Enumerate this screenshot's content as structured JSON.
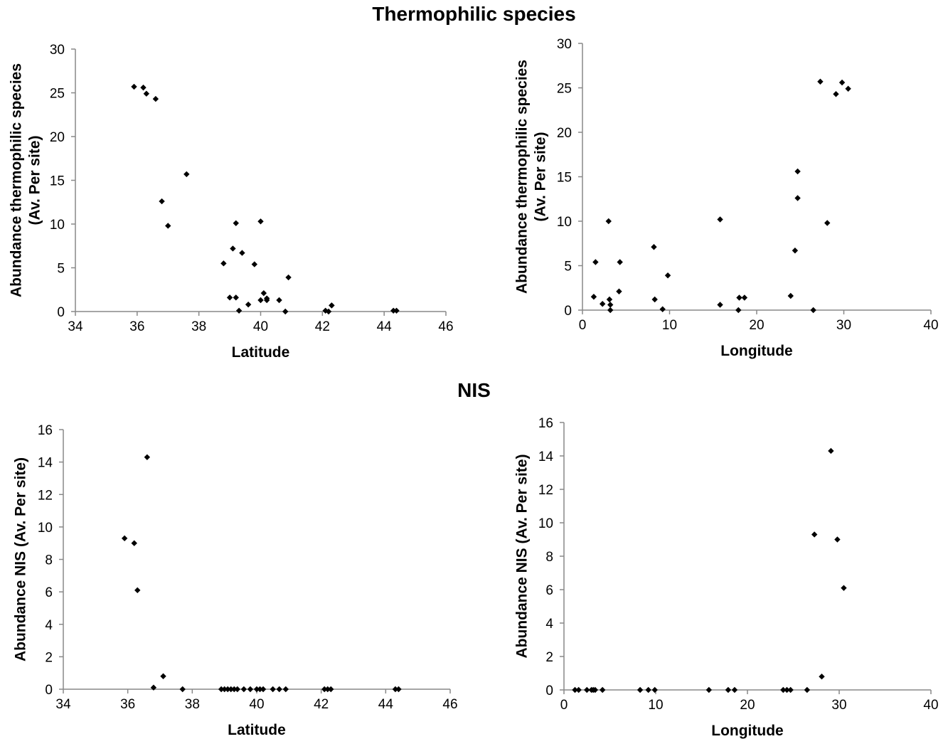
{
  "titles": {
    "top": "Thermophilic species",
    "bottom": "NIS"
  },
  "chart_data": [
    {
      "type": "scatter",
      "id": "thermo-lat",
      "xlabel": "Latitude",
      "ylabel": [
        "Abundance thermophilic species",
        "(Av. Per site)"
      ],
      "xlim": [
        34,
        46
      ],
      "xticks": [
        34,
        36,
        38,
        40,
        42,
        44,
        46
      ],
      "ylim": [
        0,
        30
      ],
      "yticks": [
        0,
        5,
        10,
        15,
        20,
        25,
        30
      ],
      "grid": false,
      "legend": "none",
      "points": [
        [
          35.9,
          25.7
        ],
        [
          36.2,
          25.6
        ],
        [
          36.3,
          24.9
        ],
        [
          36.6,
          24.3
        ],
        [
          36.8,
          12.6
        ],
        [
          37.0,
          9.8
        ],
        [
          37.6,
          15.7
        ],
        [
          38.8,
          5.5
        ],
        [
          39.0,
          1.6
        ],
        [
          39.1,
          7.2
        ],
        [
          39.2,
          1.6
        ],
        [
          39.2,
          10.1
        ],
        [
          39.3,
          0.1
        ],
        [
          39.4,
          6.7
        ],
        [
          39.6,
          0.8
        ],
        [
          39.8,
          5.4
        ],
        [
          40.0,
          10.3
        ],
        [
          40.0,
          1.3
        ],
        [
          40.1,
          2.1
        ],
        [
          40.2,
          1.3
        ],
        [
          40.2,
          1.5
        ],
        [
          40.6,
          1.3
        ],
        [
          40.8,
          0.0
        ],
        [
          40.9,
          3.9
        ],
        [
          42.1,
          0.1
        ],
        [
          42.2,
          0.0
        ],
        [
          42.3,
          0.7
        ],
        [
          42.3,
          0.7
        ],
        [
          44.3,
          0.1
        ],
        [
          44.4,
          0.1
        ]
      ]
    },
    {
      "type": "scatter",
      "id": "thermo-lon",
      "xlabel": "Longitude",
      "ylabel": [
        "Abundance thermophilic species",
        "(Av. Per site)"
      ],
      "xlim": [
        0,
        40
      ],
      "xticks": [
        0,
        10,
        20,
        30,
        40
      ],
      "ylim": [
        0,
        30
      ],
      "yticks": [
        0,
        5,
        10,
        15,
        20,
        25,
        30
      ],
      "grid": false,
      "legend": "none",
      "points": [
        [
          1.3,
          1.5
        ],
        [
          1.5,
          5.4
        ],
        [
          2.3,
          0.7
        ],
        [
          3.0,
          10.0
        ],
        [
          3.1,
          1.2
        ],
        [
          3.2,
          0.6
        ],
        [
          3.2,
          0.0
        ],
        [
          4.2,
          2.1
        ],
        [
          4.3,
          5.4
        ],
        [
          8.2,
          7.1
        ],
        [
          8.3,
          1.2
        ],
        [
          9.2,
          0.1
        ],
        [
          9.8,
          3.9
        ],
        [
          15.8,
          10.2
        ],
        [
          15.8,
          0.6
        ],
        [
          17.9,
          0.0
        ],
        [
          18.0,
          1.4
        ],
        [
          18.6,
          1.4
        ],
        [
          23.9,
          1.6
        ],
        [
          24.4,
          6.7
        ],
        [
          24.7,
          12.6
        ],
        [
          24.7,
          15.6
        ],
        [
          26.5,
          0.0
        ],
        [
          27.3,
          25.7
        ],
        [
          28.1,
          9.8
        ],
        [
          29.1,
          24.3
        ],
        [
          29.8,
          25.6
        ],
        [
          30.5,
          24.9
        ]
      ]
    },
    {
      "type": "scatter",
      "id": "nis-lat",
      "xlabel": "Latitude",
      "ylabel": [
        "Abundance NIS  (Av. Per site)"
      ],
      "xlim": [
        34,
        46
      ],
      "xticks": [
        34,
        36,
        38,
        40,
        42,
        44,
        46
      ],
      "ylim": [
        0,
        16
      ],
      "yticks": [
        0,
        2,
        4,
        6,
        8,
        10,
        12,
        14,
        16
      ],
      "grid": false,
      "legend": "none",
      "points": [
        [
          35.9,
          9.3
        ],
        [
          36.2,
          9.0
        ],
        [
          36.3,
          6.1
        ],
        [
          36.6,
          14.3
        ],
        [
          36.8,
          0.1
        ],
        [
          37.1,
          0.8
        ],
        [
          37.7,
          0.0
        ],
        [
          38.9,
          0.0
        ],
        [
          39.0,
          0.0
        ],
        [
          39.1,
          0.0
        ],
        [
          39.2,
          0.0
        ],
        [
          39.3,
          0.0
        ],
        [
          39.4,
          0.0
        ],
        [
          39.6,
          0.0
        ],
        [
          39.8,
          0.0
        ],
        [
          40.0,
          0.0
        ],
        [
          40.1,
          0.0
        ],
        [
          40.2,
          0.0
        ],
        [
          40.5,
          0.0
        ],
        [
          40.7,
          0.0
        ],
        [
          40.9,
          0.0
        ],
        [
          42.1,
          0.0
        ],
        [
          42.2,
          0.0
        ],
        [
          42.3,
          0.0
        ],
        [
          44.3,
          0.0
        ],
        [
          44.4,
          0.0
        ]
      ]
    },
    {
      "type": "scatter",
      "id": "nis-lon",
      "xlabel": "Longitude",
      "ylabel": [
        "Abundance NIS  (Av. Per site)"
      ],
      "xlim": [
        0,
        40
      ],
      "xticks": [
        0,
        10,
        20,
        30,
        40
      ],
      "ylim": [
        0,
        16
      ],
      "yticks": [
        0,
        2,
        4,
        6,
        8,
        10,
        12,
        14,
        16
      ],
      "grid": false,
      "legend": "none",
      "points": [
        [
          1.2,
          0.0
        ],
        [
          1.6,
          0.0
        ],
        [
          2.5,
          0.0
        ],
        [
          3.0,
          0.0
        ],
        [
          3.2,
          0.0
        ],
        [
          3.4,
          0.0
        ],
        [
          4.2,
          0.0
        ],
        [
          8.3,
          0.0
        ],
        [
          9.2,
          0.0
        ],
        [
          9.9,
          0.0
        ],
        [
          15.8,
          0.0
        ],
        [
          17.9,
          0.0
        ],
        [
          18.6,
          0.0
        ],
        [
          23.9,
          0.0
        ],
        [
          24.3,
          0.0
        ],
        [
          24.7,
          0.0
        ],
        [
          26.5,
          0.0
        ],
        [
          27.3,
          9.3
        ],
        [
          28.1,
          0.8
        ],
        [
          29.1,
          14.3
        ],
        [
          29.8,
          9.0
        ],
        [
          30.5,
          6.1
        ]
      ]
    }
  ]
}
